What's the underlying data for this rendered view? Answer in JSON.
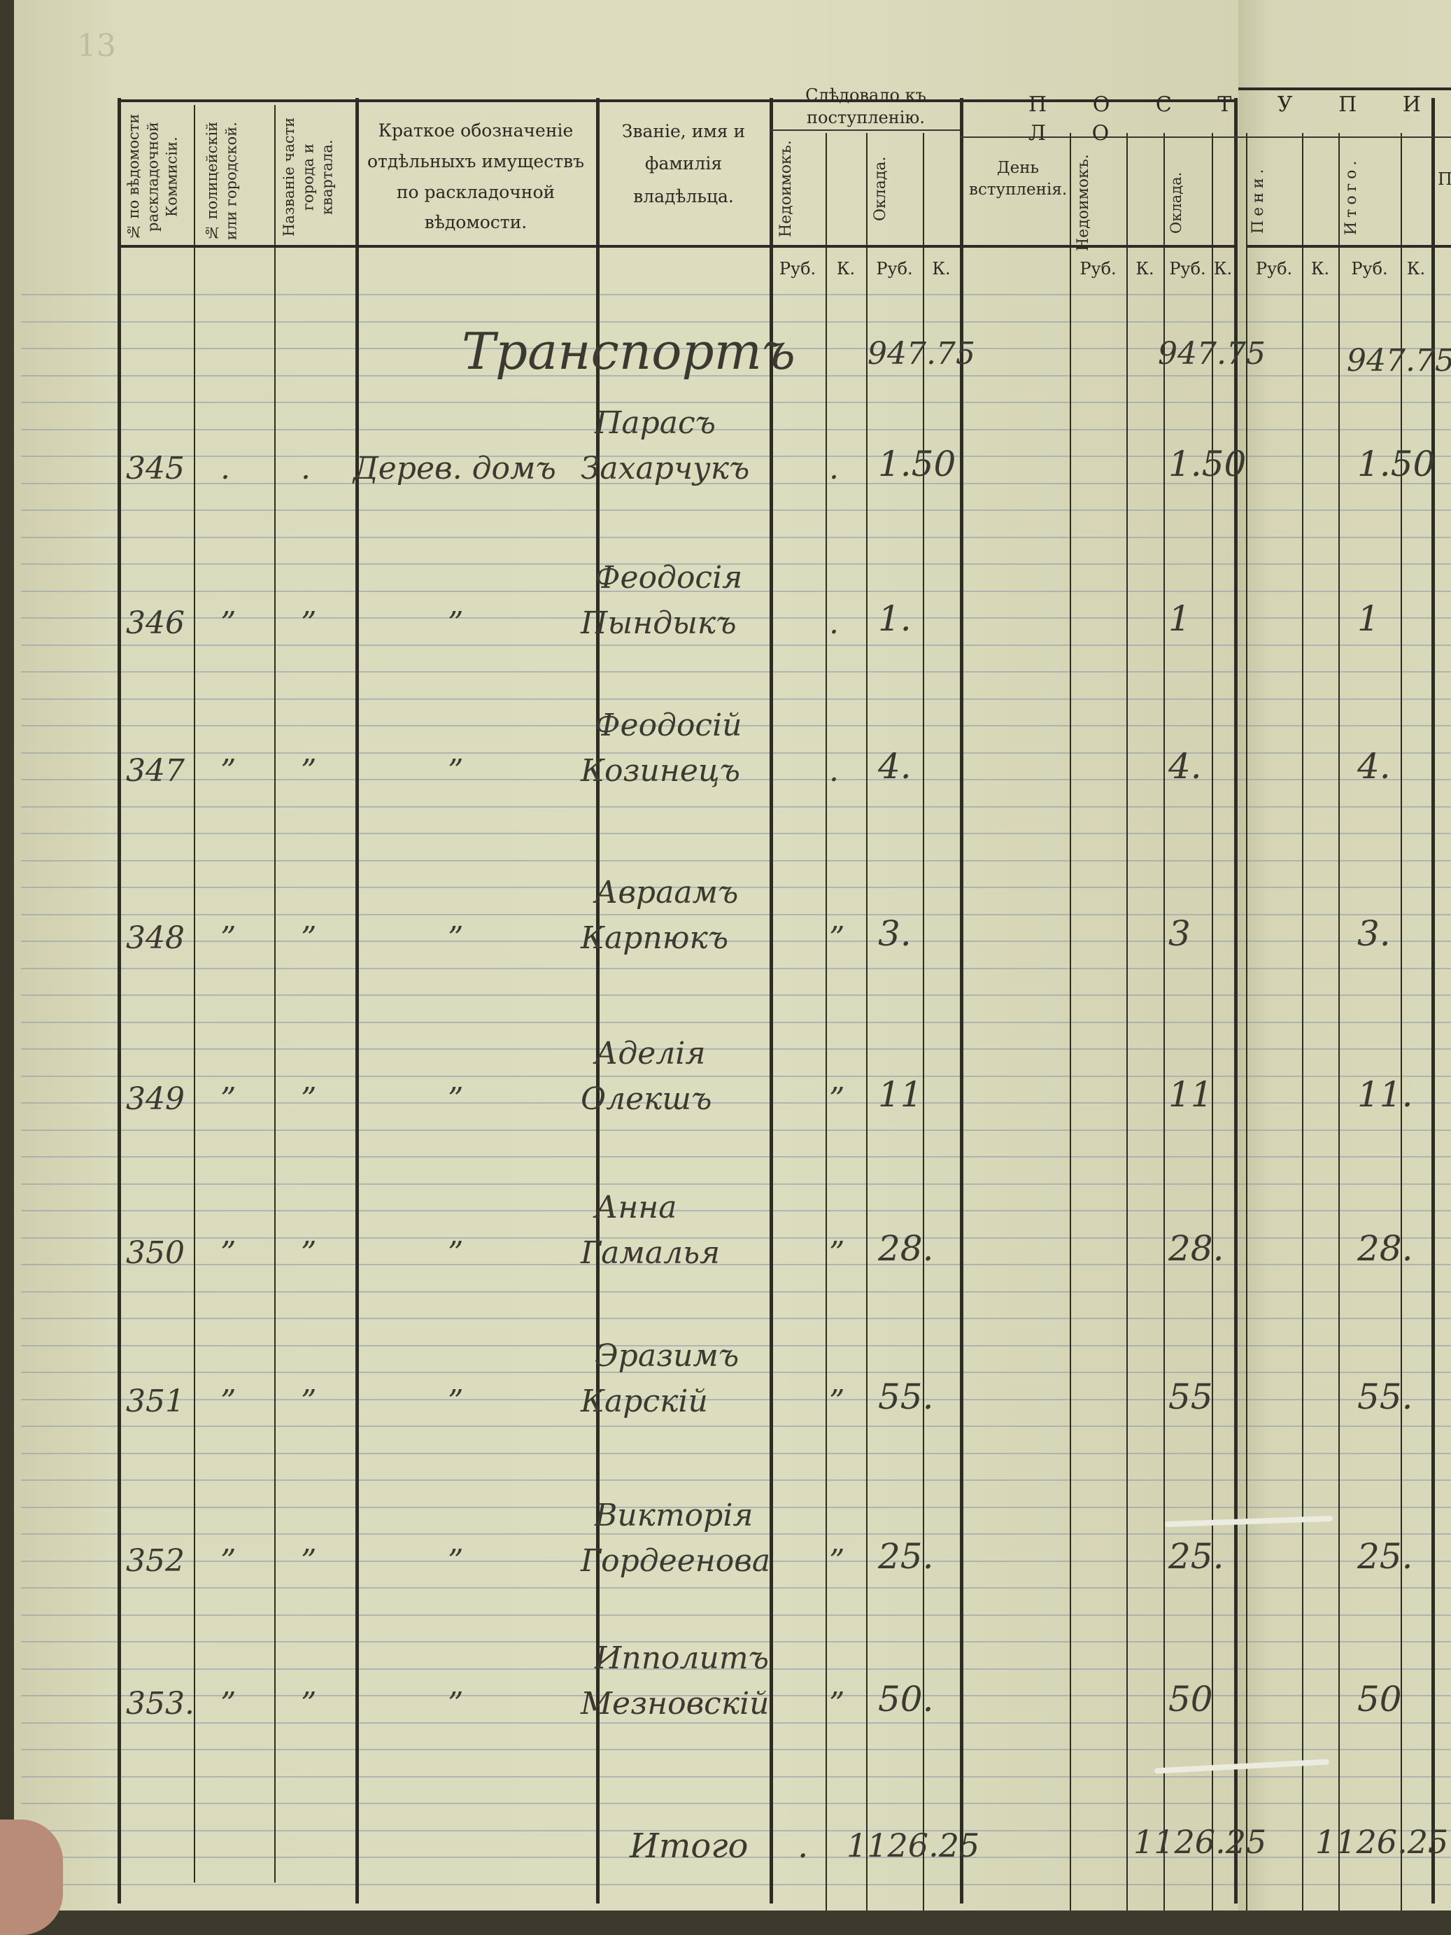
{
  "page_mark": "13",
  "header": {
    "col_no_commission": "№ по вѣдомости раскладочной Коммисіи.",
    "col_no_police": "№ полицейскій или городской.",
    "col_district": "Названіе части города и квартала.",
    "col_property": "Краткое обозначеніе отдѣльныхъ имуществъ по раскладочной вѣдомости.",
    "col_owner": "Званіе, имя и фамилія владѣльца.",
    "group_due": "Слѣдовало къ поступленію.",
    "due_arrears": "Недоимокъ.",
    "due_salary": "Оклада.",
    "group_received": "П О С Т У П И Л О",
    "recv_day": "День вступленія.",
    "recv_arrears": "Недоимокъ.",
    "recv_salary": "Оклада.",
    "recv_penalty": "Пени.",
    "recv_total": "Итого.",
    "next_col": "П",
    "unit_rub": "Руб.",
    "unit_kop": "К."
  },
  "transport": {
    "label": "Транспортъ",
    "due_salary": "947.75",
    "recv_salary": "947.75",
    "total": "947.75"
  },
  "rows": [
    {
      "no": "345",
      "police": ".",
      "district": ".",
      "property": "Дерев. домъ",
      "first": "Парасъ",
      "last": "Захарчукъ",
      "dash": ".",
      "due": "1.50",
      "recv": "1.50",
      "total": "1.50"
    },
    {
      "no": "346",
      "police": "”",
      "district": "”",
      "property": "”",
      "first": "Феодосія",
      "last": "Пындыкъ",
      "dash": ".",
      "due": "1.",
      "recv": "1",
      "total": "1"
    },
    {
      "no": "347",
      "police": "”",
      "district": "”",
      "property": "”",
      "first": "Феодосій",
      "last": "Козинецъ",
      "dash": ".",
      "due": "4.",
      "recv": "4.",
      "total": "4."
    },
    {
      "no": "348",
      "police": "”",
      "district": "”",
      "property": "”",
      "first": "Авраамъ",
      "last": "Карпюкъ",
      "dash": "”",
      "due": "3.",
      "recv": "3",
      "total": "3."
    },
    {
      "no": "349",
      "police": "”",
      "district": "”",
      "property": "”",
      "first": "Аделія",
      "last": "Олекшъ",
      "dash": "”",
      "due": "11",
      "recv": "11",
      "total": "11."
    },
    {
      "no": "350",
      "police": "”",
      "district": "”",
      "property": "”",
      "first": "Анна",
      "last": "Гамалья",
      "dash": "”",
      "due": "28.",
      "recv": "28.",
      "total": "28."
    },
    {
      "no": "351",
      "police": "”",
      "district": "”",
      "property": "”",
      "first": "Эразимъ",
      "last": "Карскій",
      "dash": "”",
      "due": "55.",
      "recv": "55",
      "total": "55."
    },
    {
      "no": "352",
      "police": "”",
      "district": "”",
      "property": "”",
      "first": "Викторія",
      "last": "Гордеенова",
      "dash": "”",
      "due": "25.",
      "recv": "25.",
      "total": "25."
    },
    {
      "no": "353.",
      "police": "”",
      "district": "”",
      "property": "”",
      "first": "Ипполитъ",
      "last": "Мезновскій",
      "dash": "”",
      "due": "50.",
      "recv": "50",
      "total": "50"
    }
  ],
  "footer": {
    "label": "Итого",
    "dash": ".",
    "due_salary": "1126.25",
    "recv_salary": "1126.25",
    "total": "1126.25"
  },
  "colors": {
    "paper": "#dcdcbf",
    "ink_print": "#2a2a22",
    "ink_hand": "#3a3a30",
    "rule": "#8d97a8"
  }
}
